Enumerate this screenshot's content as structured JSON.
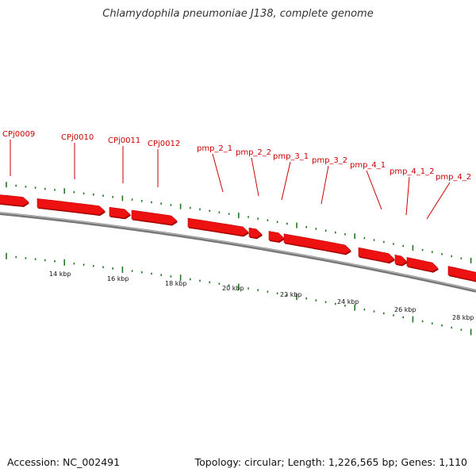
{
  "map": {
    "title": "Chlamydophila pneumoniae J138, complete genome",
    "accession": "Accession: NC_002491",
    "summary": "Topology: circular; Length: 1,226,565 bp; Genes: 1,110"
  },
  "colors": {
    "gene": "#ee1111",
    "gene_shadow": "#990000",
    "label": "#cc0000",
    "backbone": "#777777",
    "gc_ticks": "#227722"
  },
  "genes": [
    {
      "name": "CPj0009"
    },
    {
      "name": "CPj0010"
    },
    {
      "name": "CPj0011"
    },
    {
      "name": "CPj0012"
    },
    {
      "name": "pmp_2_1"
    },
    {
      "name": "pmp_2_2"
    },
    {
      "name": "pmp_3_1"
    },
    {
      "name": "pmp_3_2"
    },
    {
      "name": "pmp_4_1"
    },
    {
      "name": "pmp_4_1_2"
    },
    {
      "name": "pmp_4_2"
    }
  ],
  "scale_labels": [
    "14 kbp",
    "16 kbp",
    "18 kbp",
    "20 kbp",
    "22 kbp",
    "24 kbp",
    "26 kbp",
    "28 kbp"
  ]
}
